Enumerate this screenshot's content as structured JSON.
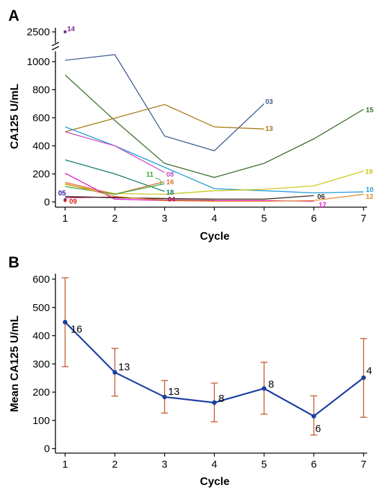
{
  "chart_data": [
    {
      "panel": "A",
      "type": "line",
      "xlabel": "Cycle",
      "ylabel": "CA125 U/mL",
      "x_ticks": [
        "1",
        "2",
        "3",
        "4",
        "5",
        "6",
        "7"
      ],
      "y_ticks": [
        "0",
        "200",
        "400",
        "600",
        "800",
        "1000",
        "2500"
      ],
      "ylim": [
        0,
        1050
      ],
      "axis_break": {
        "from": 1050,
        "to": 2500
      },
      "series": [
        {
          "name": "03",
          "color": "#3b5b92",
          "x": [
            1,
            2,
            3,
            4,
            5
          ],
          "y": [
            1010,
            1050,
            470,
            365,
            700
          ]
        },
        {
          "name": "15",
          "color": "#3a6a2a",
          "x": [
            1,
            2,
            3,
            4,
            5,
            6,
            7
          ],
          "y": [
            905,
            580,
            275,
            175,
            275,
            450,
            660
          ]
        },
        {
          "name": "13",
          "color": "#a07a10",
          "x": [
            1,
            3,
            4,
            5
          ],
          "y": [
            500,
            695,
            535,
            520
          ]
        },
        {
          "name": "10",
          "color": "#1e9bd7",
          "x": [
            1,
            2,
            4,
            5,
            6,
            7
          ],
          "y": [
            535,
            400,
            95,
            80,
            65,
            72
          ]
        },
        {
          "name": "08",
          "color": "#c450c4",
          "x": [
            1,
            2,
            3
          ],
          "y": [
            500,
            400,
            210
          ]
        },
        {
          "name": "18",
          "color": "#127a6a",
          "x": [
            1,
            2,
            3
          ],
          "y": [
            300,
            200,
            75
          ]
        },
        {
          "name": "19",
          "color": "#c8c81e",
          "x": [
            1,
            2,
            3,
            4,
            5,
            6,
            7
          ],
          "y": [
            125,
            60,
            55,
            80,
            90,
            115,
            220
          ]
        },
        {
          "name": "16",
          "color": "#e0703a",
          "x": [
            1,
            2,
            3
          ],
          "y": [
            140,
            55,
            145
          ]
        },
        {
          "name": "11",
          "color": "#3aaa3a",
          "x": [
            1,
            2,
            3
          ],
          "y": [
            110,
            55,
            130
          ]
        },
        {
          "name": "17",
          "color": "#e818d0",
          "x": [
            1,
            2,
            3,
            4,
            5,
            6
          ],
          "y": [
            205,
            20,
            10,
            10,
            10,
            5
          ]
        },
        {
          "name": "04",
          "color": "#b0186a",
          "x": [
            1,
            2,
            3,
            4
          ],
          "y": [
            30,
            35,
            15,
            10
          ]
        },
        {
          "name": "06",
          "color": "#3a2a1a",
          "x": [
            1,
            2,
            3,
            4,
            5,
            6
          ],
          "y": [
            40,
            30,
            25,
            20,
            20,
            45
          ]
        },
        {
          "name": "12",
          "color": "#e08a2a",
          "x": [
            1,
            2,
            3,
            4,
            5,
            6,
            7
          ],
          "y": [
            130,
            40,
            10,
            5,
            5,
            10,
            55
          ]
        }
      ],
      "points": [
        {
          "name": "14",
          "color": "#7a2a8a",
          "x": 1,
          "y": 2500
        },
        {
          "name": "05",
          "color": "#1a1aa0",
          "x": 1,
          "y": 15
        },
        {
          "name": "09",
          "color": "#e01a1a",
          "x": 1,
          "y": 10
        }
      ]
    },
    {
      "panel": "B",
      "type": "line",
      "xlabel": "Cycle",
      "ylabel": "Mean CA125 U/mL",
      "x_ticks": [
        "1",
        "2",
        "3",
        "4",
        "5",
        "6",
        "7"
      ],
      "y_ticks": [
        "0",
        "100",
        "200",
        "300",
        "400",
        "500",
        "600"
      ],
      "ylim": [
        0,
        620
      ],
      "line_color": "#1a3fa0",
      "errorbar_color": "#c0592a",
      "x": [
        1,
        2,
        3,
        4,
        5,
        6,
        7
      ],
      "mean": [
        448,
        270,
        183,
        163,
        213,
        115,
        251
      ],
      "err_low": [
        290,
        186,
        126,
        95,
        122,
        48,
        111
      ],
      "err_high": [
        605,
        355,
        241,
        232,
        306,
        187,
        390
      ],
      "n_labels": [
        "16",
        "13",
        "13",
        "8",
        "8",
        "6",
        "4"
      ]
    }
  ]
}
